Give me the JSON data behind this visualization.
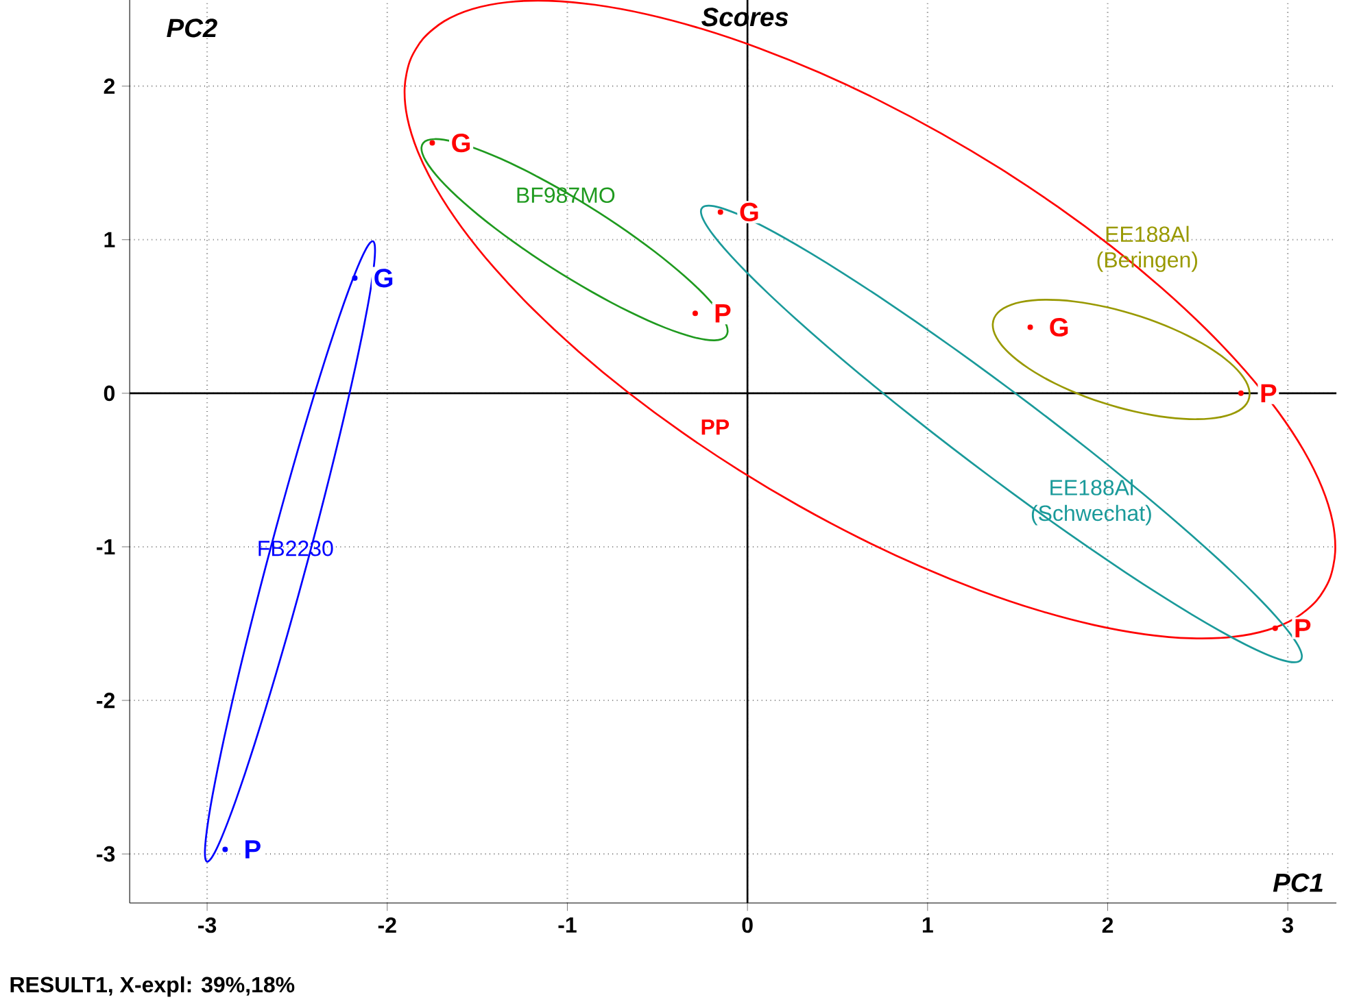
{
  "chart_data": {
    "type": "scatter",
    "title": "Scores",
    "xlabel": "PC1",
    "ylabel": "PC2",
    "xlim": [
      -3.43,
      3.27
    ],
    "ylim": [
      -3.32,
      2.63
    ],
    "xticks": [
      -3,
      -2,
      -1,
      0,
      1,
      2,
      3
    ],
    "yticks": [
      -3,
      -2,
      -1,
      0,
      1,
      2
    ],
    "grid": true,
    "annotations": [
      "RESULT1, X-expl: 39%,18%",
      "PP",
      "BF987MO",
      "FB2230",
      "EE188Al (Beringen)",
      "EE188Al (Schwechat)"
    ],
    "series": [
      {
        "marker": "circle",
        "color": "#ff0000",
        "x": [
          -1.75,
          -0.29,
          -0.15,
          1.57,
          2.74,
          2.93
        ],
        "values": [
          1.63,
          0.52,
          1.18,
          0.43,
          0.0,
          -1.53
        ],
        "value_labels": [
          "G",
          "P",
          "G",
          "G",
          "P",
          "P"
        ]
      },
      {
        "marker": "circle",
        "color": "#0000ff",
        "x": [
          -2.18,
          -2.9
        ],
        "values": [
          0.75,
          -2.97
        ],
        "value_labels": [
          "G",
          "P"
        ]
      }
    ]
  }
}
